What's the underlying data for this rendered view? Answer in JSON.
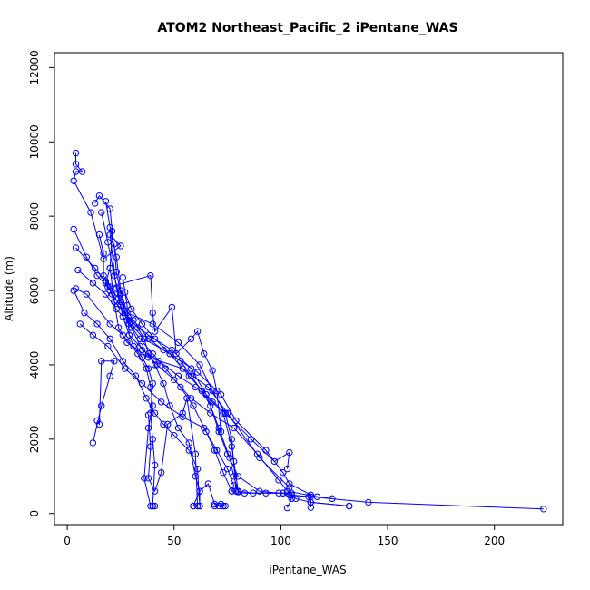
{
  "chart_data": {
    "type": "line",
    "title": "ATOM2 Northeast_Pacific_2 iPentane_WAS",
    "xlabel": "iPentane_WAS",
    "ylabel": "Altitude (m)",
    "xlim": [
      -6,
      232
    ],
    "ylim": [
      -300,
      12400
    ],
    "x_ticks": [
      0,
      50,
      100,
      150,
      200
    ],
    "y_ticks": [
      0,
      2000,
      4000,
      6000,
      8000,
      10000,
      12000
    ],
    "grid": false,
    "legend": "none",
    "marker": "open-circle",
    "color": "#0000ff",
    "series": [
      {
        "values": [
          {
            "x": 4,
            "y": 9700
          },
          {
            "x": 4,
            "y": 9400
          },
          {
            "x": 7,
            "y": 9200
          },
          {
            "x": 4,
            "y": 9200
          },
          {
            "x": 3,
            "y": 8950
          },
          {
            "x": 11,
            "y": 8100
          },
          {
            "x": 17,
            "y": 6850
          },
          {
            "x": 25,
            "y": 7200
          },
          {
            "x": 20,
            "y": 7500
          },
          {
            "x": 23,
            "y": 6050
          },
          {
            "x": 26,
            "y": 5300
          },
          {
            "x": 29,
            "y": 4800
          },
          {
            "x": 31,
            "y": 4500
          },
          {
            "x": 35,
            "y": 4200
          },
          {
            "x": 38,
            "y": 3900
          },
          {
            "x": 40,
            "y": 3500
          },
          {
            "x": 39,
            "y": 2700
          },
          {
            "x": 40,
            "y": 2000
          },
          {
            "x": 41,
            "y": 1300
          },
          {
            "x": 40,
            "y": 200
          },
          {
            "x": 41,
            "y": 200
          }
        ]
      },
      {
        "values": [
          {
            "x": 3,
            "y": 7650
          },
          {
            "x": 9,
            "y": 6900
          },
          {
            "x": 14,
            "y": 6400
          },
          {
            "x": 19,
            "y": 6100
          },
          {
            "x": 24,
            "y": 5800
          },
          {
            "x": 31,
            "y": 5200
          },
          {
            "x": 38,
            "y": 4700
          },
          {
            "x": 45,
            "y": 4400
          },
          {
            "x": 53,
            "y": 4100
          },
          {
            "x": 58,
            "y": 3700
          },
          {
            "x": 63,
            "y": 3300
          },
          {
            "x": 67,
            "y": 2900
          },
          {
            "x": 71,
            "y": 2200
          },
          {
            "x": 75,
            "y": 1600
          },
          {
            "x": 80,
            "y": 1000
          },
          {
            "x": 90,
            "y": 600
          },
          {
            "x": 99,
            "y": 550
          },
          {
            "x": 105,
            "y": 550
          },
          {
            "x": 107,
            "y": 400
          },
          {
            "x": 114,
            "y": 300
          },
          {
            "x": 132,
            "y": 200
          }
        ]
      },
      {
        "values": [
          {
            "x": 4,
            "y": 7150
          },
          {
            "x": 13,
            "y": 6600
          },
          {
            "x": 18,
            "y": 6250
          },
          {
            "x": 20,
            "y": 6000
          },
          {
            "x": 22,
            "y": 5700
          },
          {
            "x": 27,
            "y": 5400
          },
          {
            "x": 33,
            "y": 5000
          },
          {
            "x": 36,
            "y": 4700
          },
          {
            "x": 38,
            "y": 4300
          },
          {
            "x": 41,
            "y": 4000
          },
          {
            "x": 45,
            "y": 3500
          },
          {
            "x": 48,
            "y": 2900
          },
          {
            "x": 52,
            "y": 2300
          },
          {
            "x": 57,
            "y": 1900
          },
          {
            "x": 60,
            "y": 1000
          },
          {
            "x": 62,
            "y": 600
          },
          {
            "x": 62,
            "y": 200
          },
          {
            "x": 59,
            "y": 200
          }
        ]
      },
      {
        "values": [
          {
            "x": 5,
            "y": 6550
          },
          {
            "x": 12,
            "y": 6200
          },
          {
            "x": 18,
            "y": 5900
          },
          {
            "x": 23,
            "y": 5500
          },
          {
            "x": 29,
            "y": 5100
          },
          {
            "x": 34,
            "y": 4700
          },
          {
            "x": 40,
            "y": 4300
          },
          {
            "x": 46,
            "y": 3900
          },
          {
            "x": 53,
            "y": 3400
          },
          {
            "x": 59,
            "y": 2900
          },
          {
            "x": 65,
            "y": 2200
          },
          {
            "x": 69,
            "y": 1700
          },
          {
            "x": 73,
            "y": 1100
          },
          {
            "x": 77,
            "y": 600
          },
          {
            "x": 83,
            "y": 550
          },
          {
            "x": 93,
            "y": 550
          },
          {
            "x": 101,
            "y": 550
          },
          {
            "x": 104,
            "y": 500
          },
          {
            "x": 114,
            "y": 450
          },
          {
            "x": 141,
            "y": 300
          },
          {
            "x": 223,
            "y": 120
          }
        ]
      },
      {
        "values": [
          {
            "x": 4,
            "y": 6050
          },
          {
            "x": 9,
            "y": 5900
          },
          {
            "x": 20,
            "y": 5100
          },
          {
            "x": 26,
            "y": 4800
          },
          {
            "x": 33,
            "y": 4300
          },
          {
            "x": 37,
            "y": 3900
          },
          {
            "x": 39,
            "y": 3400
          },
          {
            "x": 40,
            "y": 2900
          },
          {
            "x": 38,
            "y": 2300
          },
          {
            "x": 36,
            "y": 950
          },
          {
            "x": 39,
            "y": 200
          },
          {
            "x": 40,
            "y": 200
          }
        ]
      },
      {
        "values": [
          {
            "x": 3,
            "y": 6000
          },
          {
            "x": 8,
            "y": 5400
          },
          {
            "x": 14,
            "y": 5100
          },
          {
            "x": 20,
            "y": 4700
          },
          {
            "x": 26,
            "y": 4100
          },
          {
            "x": 32,
            "y": 3700
          },
          {
            "x": 37,
            "y": 3100
          },
          {
            "x": 41,
            "y": 2700
          },
          {
            "x": 45,
            "y": 2400
          },
          {
            "x": 50,
            "y": 2100
          },
          {
            "x": 57,
            "y": 1700
          },
          {
            "x": 61,
            "y": 1200
          },
          {
            "x": 62,
            "y": 200
          }
        ]
      },
      {
        "values": [
          {
            "x": 6,
            "y": 5100
          },
          {
            "x": 12,
            "y": 4800
          },
          {
            "x": 19,
            "y": 4500
          },
          {
            "x": 27,
            "y": 3900
          },
          {
            "x": 35,
            "y": 3500
          },
          {
            "x": 44,
            "y": 3000
          },
          {
            "x": 54,
            "y": 2600
          },
          {
            "x": 64,
            "y": 2300
          },
          {
            "x": 70,
            "y": 1700
          },
          {
            "x": 75,
            "y": 1200
          },
          {
            "x": 78,
            "y": 750
          },
          {
            "x": 77,
            "y": 600
          }
        ]
      },
      {
        "values": [
          {
            "x": 13,
            "y": 8350
          },
          {
            "x": 15,
            "y": 8550
          },
          {
            "x": 20,
            "y": 8200
          },
          {
            "x": 21,
            "y": 7600
          },
          {
            "x": 20,
            "y": 6600
          },
          {
            "x": 18,
            "y": 6200
          },
          {
            "x": 21,
            "y": 5900
          },
          {
            "x": 25,
            "y": 5600
          },
          {
            "x": 30,
            "y": 5000
          },
          {
            "x": 35,
            "y": 4400
          },
          {
            "x": 43,
            "y": 4100
          },
          {
            "x": 52,
            "y": 3700
          },
          {
            "x": 60,
            "y": 3400
          },
          {
            "x": 68,
            "y": 3000
          },
          {
            "x": 73,
            "y": 2700
          },
          {
            "x": 77,
            "y": 1800
          },
          {
            "x": 78,
            "y": 1400
          },
          {
            "x": 80,
            "y": 600
          },
          {
            "x": 87,
            "y": 550
          },
          {
            "x": 101,
            "y": 550
          },
          {
            "x": 105,
            "y": 400
          },
          {
            "x": 103,
            "y": 150
          }
        ]
      },
      {
        "values": [
          {
            "x": 16,
            "y": 8100
          },
          {
            "x": 19,
            "y": 7300
          },
          {
            "x": 22,
            "y": 6400
          },
          {
            "x": 25,
            "y": 5700
          },
          {
            "x": 29,
            "y": 5200
          },
          {
            "x": 38,
            "y": 4800
          },
          {
            "x": 49,
            "y": 4400
          },
          {
            "x": 58,
            "y": 3900
          },
          {
            "x": 65,
            "y": 3200
          },
          {
            "x": 71,
            "y": 2300
          },
          {
            "x": 76,
            "y": 1500
          },
          {
            "x": 78,
            "y": 1000
          },
          {
            "x": 80,
            "y": 580
          }
        ]
      },
      {
        "values": [
          {
            "x": 18,
            "y": 8400
          },
          {
            "x": 20,
            "y": 7700
          },
          {
            "x": 23,
            "y": 6900
          },
          {
            "x": 25,
            "y": 6000
          },
          {
            "x": 28,
            "y": 5400
          },
          {
            "x": 40,
            "y": 5100
          },
          {
            "x": 52,
            "y": 4600
          },
          {
            "x": 62,
            "y": 4000
          },
          {
            "x": 68,
            "y": 3300
          },
          {
            "x": 74,
            "y": 2700
          },
          {
            "x": 77,
            "y": 2000
          },
          {
            "x": 79,
            "y": 600
          }
        ]
      },
      {
        "values": [
          {
            "x": 20,
            "y": 6600
          },
          {
            "x": 22,
            "y": 5700
          },
          {
            "x": 24,
            "y": 5000
          },
          {
            "x": 28,
            "y": 4600
          },
          {
            "x": 38,
            "y": 4200
          },
          {
            "x": 54,
            "y": 3900
          },
          {
            "x": 66,
            "y": 3400
          },
          {
            "x": 75,
            "y": 2700
          },
          {
            "x": 90,
            "y": 1500
          },
          {
            "x": 104,
            "y": 700
          },
          {
            "x": 105,
            "y": 500
          },
          {
            "x": 113,
            "y": 450
          },
          {
            "x": 114,
            "y": 300
          },
          {
            "x": 132,
            "y": 200
          }
        ]
      },
      {
        "values": [
          {
            "x": 22,
            "y": 7250
          },
          {
            "x": 23,
            "y": 6500
          },
          {
            "x": 25,
            "y": 5900
          },
          {
            "x": 28,
            "y": 5200
          },
          {
            "x": 36,
            "y": 4700
          },
          {
            "x": 48,
            "y": 4300
          },
          {
            "x": 61,
            "y": 3800
          },
          {
            "x": 72,
            "y": 3200
          },
          {
            "x": 79,
            "y": 2500
          },
          {
            "x": 93,
            "y": 1700
          },
          {
            "x": 101,
            "y": 1100
          },
          {
            "x": 104,
            "y": 800
          },
          {
            "x": 114,
            "y": 500
          },
          {
            "x": 114,
            "y": 160
          }
        ]
      },
      {
        "values": [
          {
            "x": 26,
            "y": 6350
          },
          {
            "x": 28,
            "y": 5600
          },
          {
            "x": 29,
            "y": 4800
          },
          {
            "x": 34,
            "y": 4500
          },
          {
            "x": 42,
            "y": 4000
          },
          {
            "x": 50,
            "y": 3600
          },
          {
            "x": 58,
            "y": 3100
          },
          {
            "x": 67,
            "y": 2700
          },
          {
            "x": 78,
            "y": 2300
          },
          {
            "x": 89,
            "y": 1600
          },
          {
            "x": 99,
            "y": 900
          },
          {
            "x": 103,
            "y": 600
          },
          {
            "x": 117,
            "y": 450
          },
          {
            "x": 124,
            "y": 400
          }
        ]
      },
      {
        "values": [
          {
            "x": 27,
            "y": 5950
          },
          {
            "x": 30,
            "y": 5500
          },
          {
            "x": 35,
            "y": 5100
          },
          {
            "x": 41,
            "y": 4700
          },
          {
            "x": 48,
            "y": 4300
          },
          {
            "x": 57,
            "y": 3700
          },
          {
            "x": 65,
            "y": 3200
          },
          {
            "x": 74,
            "y": 2700
          },
          {
            "x": 86,
            "y": 2000
          },
          {
            "x": 97,
            "y": 1400
          },
          {
            "x": 104,
            "y": 1640
          },
          {
            "x": 103,
            "y": 1200
          }
        ]
      },
      {
        "values": [
          {
            "x": 15,
            "y": 7500
          },
          {
            "x": 17,
            "y": 7000
          },
          {
            "x": 17,
            "y": 6400
          },
          {
            "x": 20,
            "y": 6100
          },
          {
            "x": 39,
            "y": 6400
          },
          {
            "x": 40,
            "y": 5400
          },
          {
            "x": 41,
            "y": 4900
          },
          {
            "x": 49,
            "y": 5550
          },
          {
            "x": 51,
            "y": 4300
          },
          {
            "x": 58,
            "y": 4700
          },
          {
            "x": 61,
            "y": 4900
          },
          {
            "x": 64,
            "y": 4300
          },
          {
            "x": 68,
            "y": 3850
          },
          {
            "x": 70,
            "y": 3300
          },
          {
            "x": 72,
            "y": 2200
          }
        ]
      },
      {
        "values": [
          {
            "x": 12,
            "y": 1900
          },
          {
            "x": 16,
            "y": 2900
          },
          {
            "x": 20,
            "y": 3700
          },
          {
            "x": 22,
            "y": 4100
          },
          {
            "x": 16,
            "y": 4100
          },
          {
            "x": 15,
            "y": 2400
          },
          {
            "x": 14,
            "y": 2500
          }
        ]
      },
      {
        "values": [
          {
            "x": 38,
            "y": 2650
          },
          {
            "x": 39,
            "y": 1800
          },
          {
            "x": 38,
            "y": 950
          },
          {
            "x": 41,
            "y": 600
          },
          {
            "x": 44,
            "y": 1100
          },
          {
            "x": 47,
            "y": 2400
          },
          {
            "x": 54,
            "y": 2700
          },
          {
            "x": 56,
            "y": 3100
          },
          {
            "x": 60,
            "y": 1600
          },
          {
            "x": 61,
            "y": 200
          }
        ]
      },
      {
        "values": [
          {
            "x": 59,
            "y": 200
          },
          {
            "x": 62,
            "y": 600
          },
          {
            "x": 66,
            "y": 800
          },
          {
            "x": 69,
            "y": 250
          },
          {
            "x": 71,
            "y": 200
          },
          {
            "x": 73,
            "y": 200
          }
        ]
      },
      {
        "values": [
          {
            "x": 69,
            "y": 200
          },
          {
            "x": 72,
            "y": 250
          },
          {
            "x": 74,
            "y": 200
          }
        ]
      }
    ]
  }
}
